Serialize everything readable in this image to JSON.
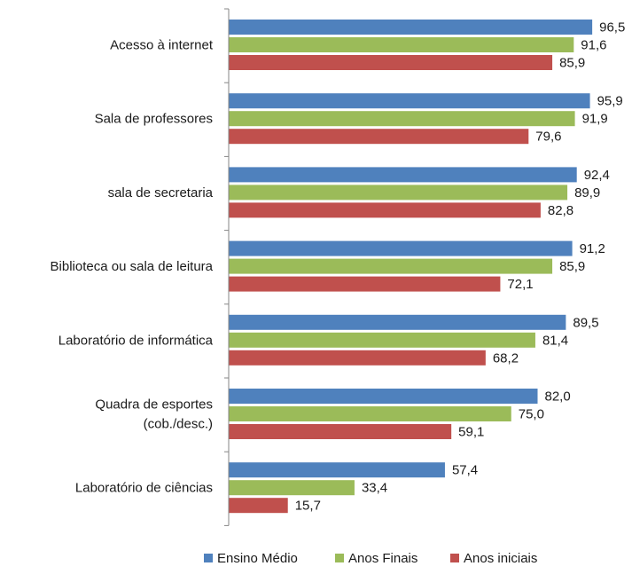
{
  "chart_data": {
    "type": "bar",
    "orientation": "horizontal",
    "categories": [
      [
        "Acesso à internet"
      ],
      [
        "Sala de professores"
      ],
      [
        "sala de secretaria"
      ],
      [
        "Biblioteca ou sala de leitura"
      ],
      [
        "Laboratório de informática"
      ],
      [
        "Quadra de esportes",
        "(cob./desc.)"
      ],
      [
        "Laboratório de ciências"
      ]
    ],
    "series": [
      {
        "name": "Ensino Médio",
        "color": "#4f81bd",
        "values": [
          96.5,
          95.9,
          92.4,
          91.2,
          89.5,
          82.0,
          57.4
        ],
        "labels": [
          "96,5",
          "95,9",
          "92,4",
          "91,2",
          "89,5",
          "82,0",
          "57,4"
        ]
      },
      {
        "name": "Anos Finais",
        "color": "#9bbb59",
        "values": [
          91.6,
          91.9,
          89.9,
          85.9,
          81.4,
          75.0,
          33.4
        ],
        "labels": [
          "91,6",
          "91,9",
          "89,9",
          "85,9",
          "81,4",
          "75,0",
          "33,4"
        ]
      },
      {
        "name": "Anos iniciais",
        "color": "#c0504d",
        "values": [
          85.9,
          79.6,
          82.8,
          72.1,
          68.2,
          59.1,
          15.7
        ],
        "labels": [
          "85,9",
          "79,6",
          "82,8",
          "72,1",
          "68,2",
          "59,1",
          "15,7"
        ]
      }
    ],
    "xlim": [
      0,
      100
    ],
    "title": "",
    "xlabel": "",
    "ylabel": "",
    "grid": false,
    "legend_position": "bottom",
    "axis_color": "#868686"
  }
}
